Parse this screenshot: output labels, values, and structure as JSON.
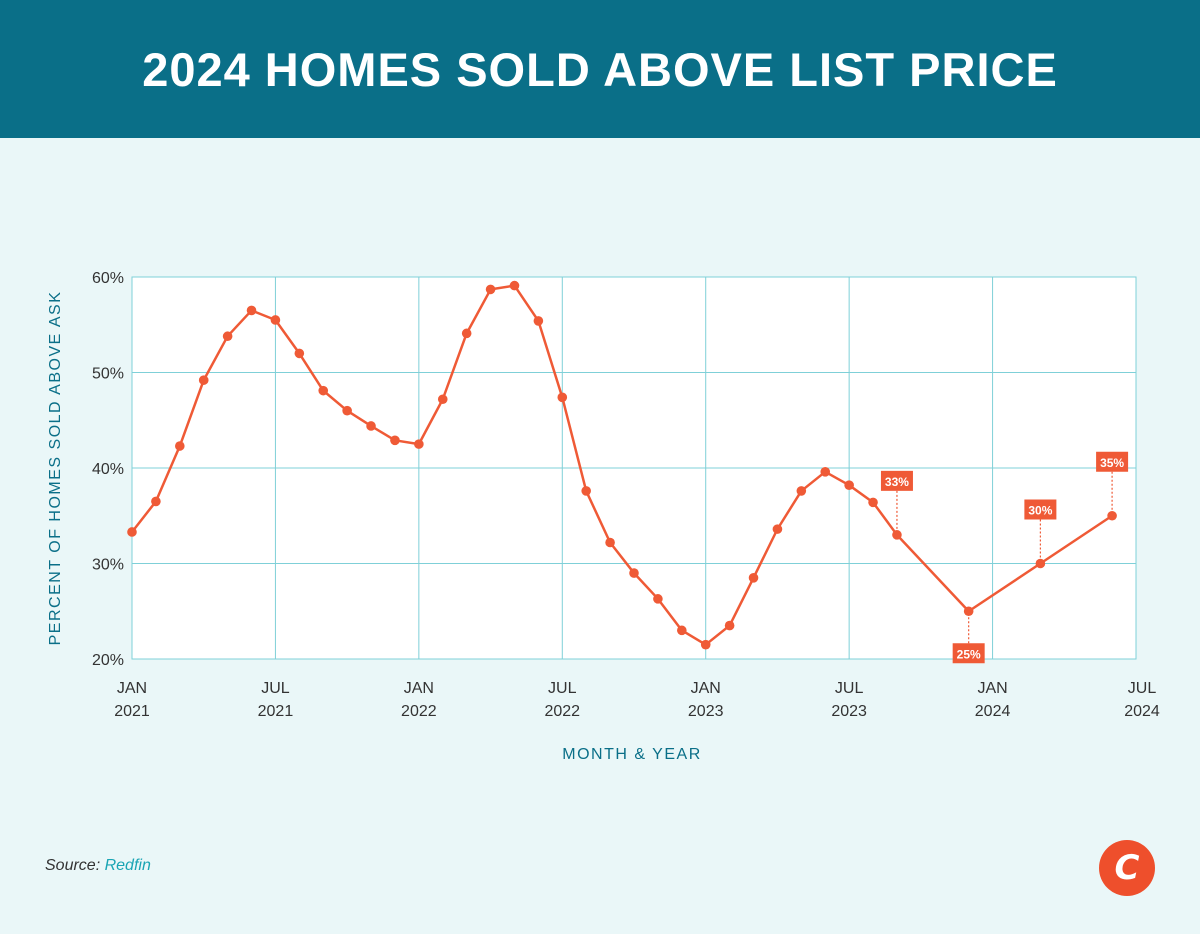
{
  "header": {
    "title": "2024 HOMES SOLD ABOVE LIST PRICE"
  },
  "colors": {
    "header_bg": "#0a6f88",
    "background": "#eaf7f8",
    "grid": "#7fd0d8",
    "line": "#ef5a36",
    "axis_title": "#0a6f88"
  },
  "chart_data": {
    "type": "line",
    "title": "",
    "xlabel": "MONTH & YEAR",
    "ylabel": "PERCENT OF HOMES SOLD ABOVE ASK",
    "ylim": [
      20,
      60
    ],
    "xlim": [
      "2021-01",
      "2024-07"
    ],
    "yticks": [
      "20%",
      "30%",
      "40%",
      "50%",
      "60%"
    ],
    "xticks": [
      {
        "month": "JAN",
        "year": "2021"
      },
      {
        "month": "JUL",
        "year": "2021"
      },
      {
        "month": "JAN",
        "year": "2022"
      },
      {
        "month": "JUL",
        "year": "2022"
      },
      {
        "month": "JAN",
        "year": "2023"
      },
      {
        "month": "JUL",
        "year": "2023"
      },
      {
        "month": "JAN",
        "year": "2024"
      },
      {
        "month": "JUL",
        "year": "2024"
      }
    ],
    "grid": true,
    "series": [
      {
        "points": [
          {
            "x": "2021-01",
            "y": 33.3
          },
          {
            "x": "2021-02",
            "y": 36.5
          },
          {
            "x": "2021-03",
            "y": 42.3
          },
          {
            "x": "2021-04",
            "y": 49.2
          },
          {
            "x": "2021-05",
            "y": 53.8
          },
          {
            "x": "2021-06",
            "y": 56.5
          },
          {
            "x": "2021-07",
            "y": 55.5
          },
          {
            "x": "2021-08",
            "y": 52.0
          },
          {
            "x": "2021-09",
            "y": 48.1
          },
          {
            "x": "2021-10",
            "y": 46.0
          },
          {
            "x": "2021-11",
            "y": 44.4
          },
          {
            "x": "2021-12",
            "y": 42.9
          },
          {
            "x": "2022-01",
            "y": 42.5
          },
          {
            "x": "2022-02",
            "y": 47.2
          },
          {
            "x": "2022-03",
            "y": 54.1
          },
          {
            "x": "2022-04",
            "y": 58.7
          },
          {
            "x": "2022-05",
            "y": 59.1
          },
          {
            "x": "2022-06",
            "y": 55.4
          },
          {
            "x": "2022-07",
            "y": 47.4
          },
          {
            "x": "2022-08",
            "y": 37.6
          },
          {
            "x": "2022-09",
            "y": 32.2
          },
          {
            "x": "2022-10",
            "y": 29.0
          },
          {
            "x": "2022-11",
            "y": 26.3
          },
          {
            "x": "2022-12",
            "y": 23.0
          },
          {
            "x": "2023-01",
            "y": 21.5
          },
          {
            "x": "2023-02",
            "y": 23.5
          },
          {
            "x": "2023-03",
            "y": 28.5
          },
          {
            "x": "2023-04",
            "y": 33.6
          },
          {
            "x": "2023-05",
            "y": 37.6
          },
          {
            "x": "2023-06",
            "y": 39.6
          },
          {
            "x": "2023-07",
            "y": 38.2
          },
          {
            "x": "2023-08",
            "y": 36.4
          },
          {
            "x": "2023-09",
            "y": 33.0
          },
          {
            "x": "2023-12",
            "y": 25.0
          },
          {
            "x": "2024-03",
            "y": 30.0
          },
          {
            "x": "2024-06",
            "y": 35.0
          }
        ]
      }
    ],
    "annotations": [
      {
        "x": "2023-09",
        "y": 33,
        "label": "33%",
        "position": "above"
      },
      {
        "x": "2023-12",
        "y": 25,
        "label": "25%",
        "position": "below"
      },
      {
        "x": "2024-03",
        "y": 30,
        "label": "30%",
        "position": "above"
      },
      {
        "x": "2024-06",
        "y": 35,
        "label": "35%",
        "position": "above"
      }
    ]
  },
  "footer": {
    "source_label": "Source:",
    "source_value": "Redfin"
  },
  "logo": {
    "glyph": "C",
    "icon": "brand-logo-icon"
  }
}
